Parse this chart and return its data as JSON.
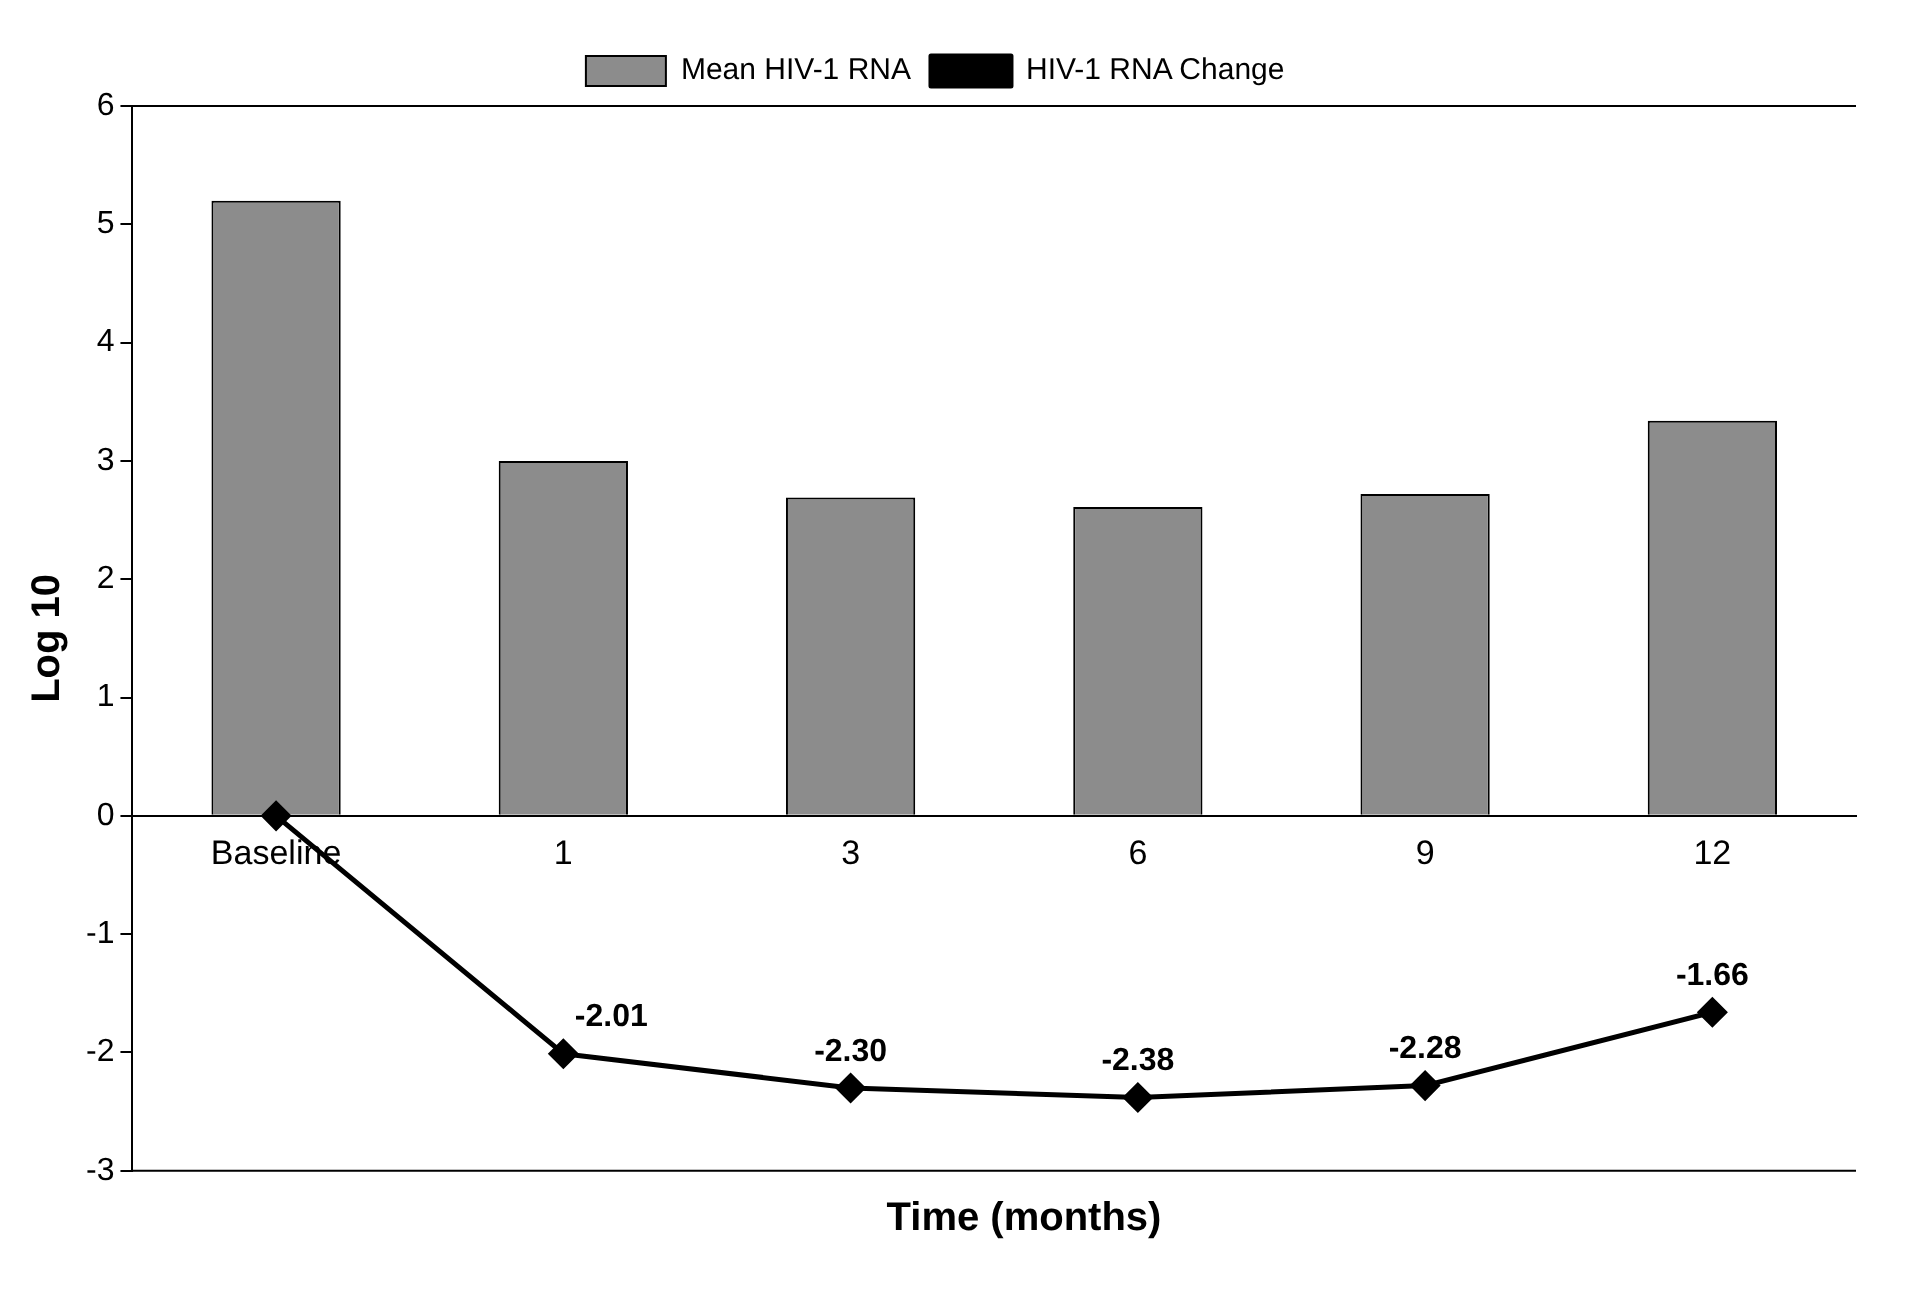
{
  "chart_data": {
    "type": "bar",
    "xlabel": "Time (months)",
    "ylabel": "Log 10",
    "categories": [
      "Baseline",
      "1",
      "3",
      "6",
      "9",
      "12"
    ],
    "series": [
      {
        "name": "Mean HIV-1 RNA",
        "color": "#8c8c8c",
        "values": [
          5.2,
          3.0,
          2.69,
          2.61,
          2.72,
          3.34
        ]
      },
      {
        "name": "HIV-1 RNA Change",
        "type": "line",
        "color": "#000000",
        "values": [
          0,
          -2.01,
          -2.3,
          -2.38,
          -2.28,
          -1.66
        ],
        "value_labels": [
          null,
          "-2.01",
          "-2.30",
          "-2.38",
          "-2.28",
          "-1.66"
        ],
        "marker": "diamond",
        "line_style": "solid"
      }
    ],
    "ylim": [
      -3,
      6
    ],
    "yticks": [
      -3,
      -2,
      -1,
      0,
      1,
      2,
      3,
      4,
      5,
      6
    ],
    "grid": false,
    "legend": "top"
  }
}
